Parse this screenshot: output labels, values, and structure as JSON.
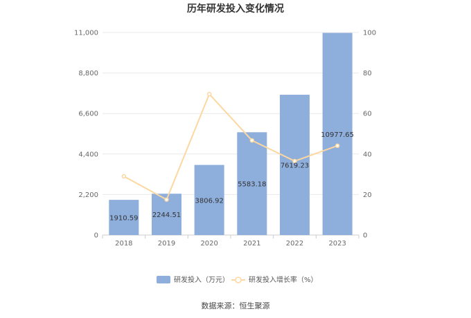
{
  "chart_data": {
    "type": "bar",
    "title": "历年研发投入变化情况",
    "categories": [
      "2018",
      "2019",
      "2020",
      "2021",
      "2022",
      "2023"
    ],
    "series": [
      {
        "name": "研发投入（万元）",
        "type": "bar",
        "axis": "left",
        "values": [
          1910.59,
          2244.51,
          3806.92,
          5583.18,
          7619.23,
          10977.65
        ],
        "labels": [
          "1910.59",
          "2244.51",
          "3806.92",
          "5583.18",
          "7619.23",
          "10977.65"
        ]
      },
      {
        "name": "研发投入增长率（%）",
        "type": "line",
        "axis": "right",
        "values": [
          29,
          17.5,
          69.6,
          46.7,
          36.5,
          44.1
        ]
      }
    ],
    "y_left": {
      "ylim": [
        0,
        11000
      ],
      "ticks": [
        "0",
        "2,200",
        "4,400",
        "6,600",
        "8,800",
        "11,000"
      ],
      "tick_values": [
        0,
        2200,
        4400,
        6600,
        8800,
        11000
      ]
    },
    "y_right": {
      "ylim": [
        0,
        100
      ],
      "ticks": [
        "0",
        "20",
        "40",
        "60",
        "80",
        "100"
      ],
      "tick_values": [
        0,
        20,
        40,
        60,
        80,
        100
      ]
    },
    "grid": true,
    "legend_position": "bottom",
    "colors": {
      "bar": "#8eaedc",
      "line": "#fcd8a0",
      "grid": "#e8e8e8",
      "axis": "#cccccc"
    }
  },
  "source": "数据来源：恒生聚源"
}
